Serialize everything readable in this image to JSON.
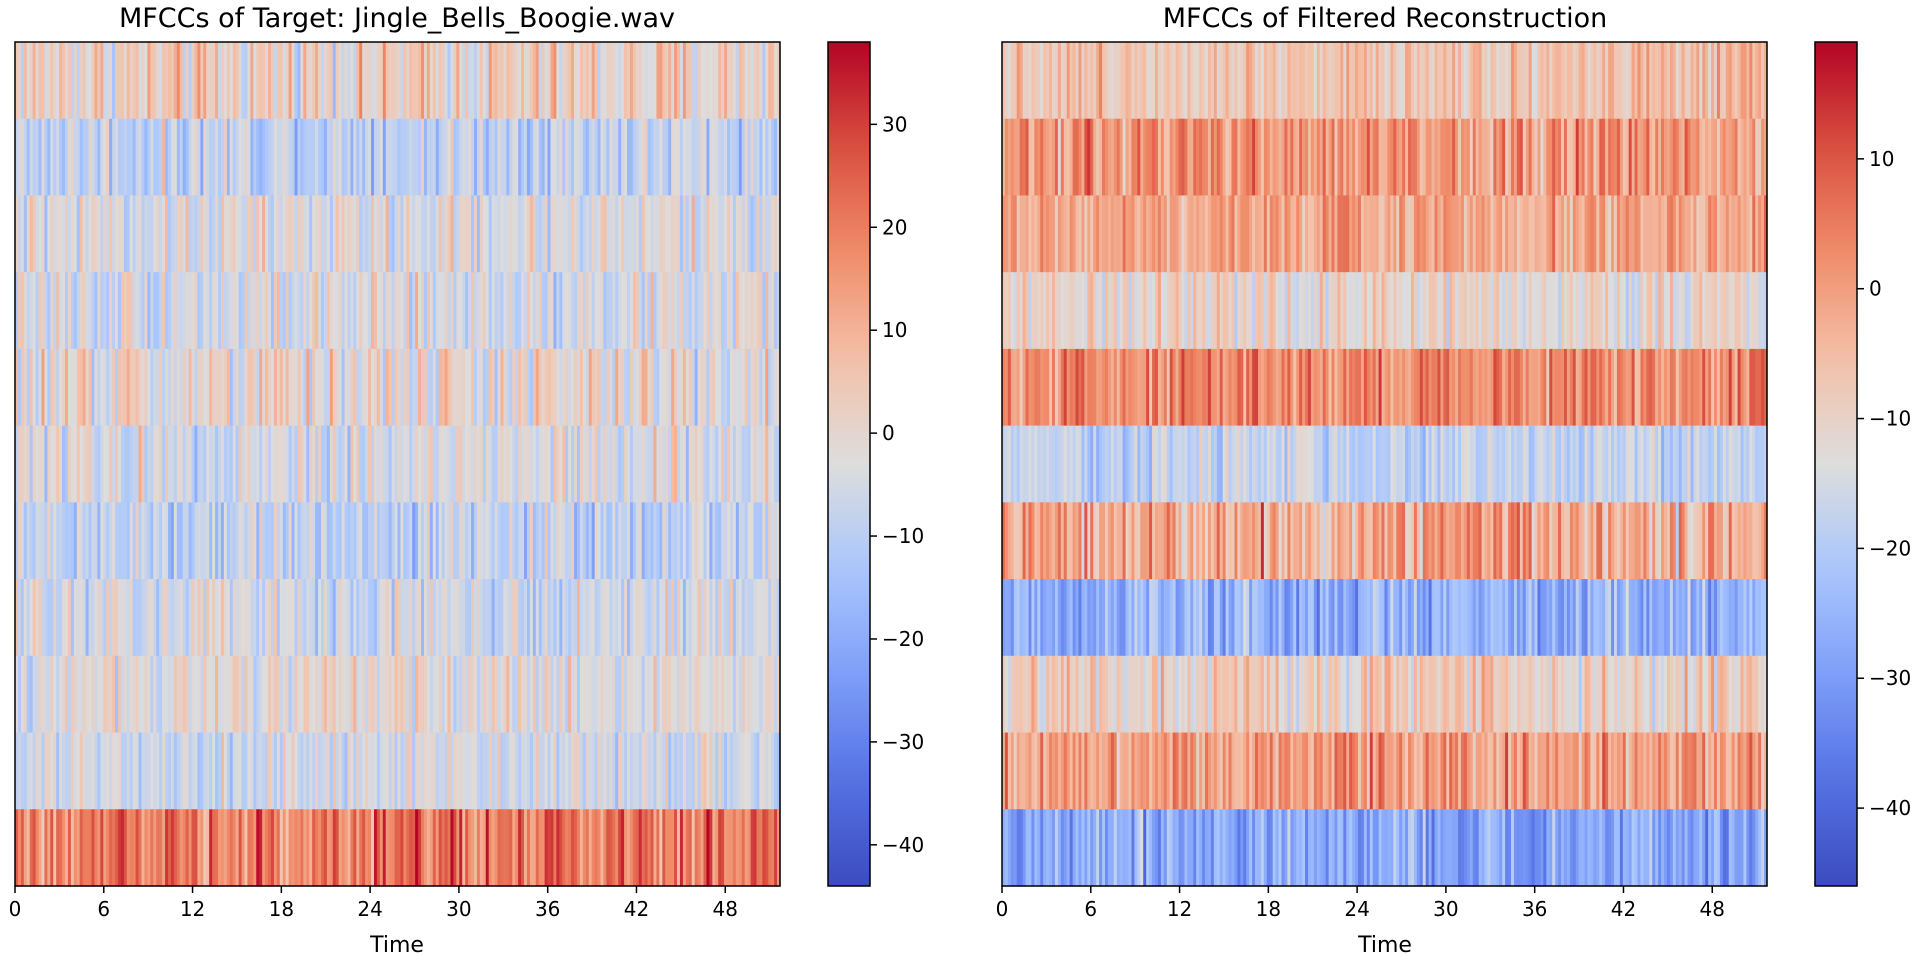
{
  "chart_data": [
    {
      "type": "heatmap",
      "title": "MFCCs of Target: Jingle_Bells_Boogie.wav",
      "xlabel": "Time",
      "ylabel": "",
      "xlim": [
        0,
        51.7
      ],
      "xticks": [
        "0",
        "6",
        "12",
        "18",
        "24",
        "30",
        "36",
        "42",
        "48"
      ],
      "xtick_values": [
        0,
        6,
        12,
        18,
        24,
        30,
        36,
        42,
        48
      ],
      "n_coefficients": 11,
      "n_frames": 260,
      "row_order": "top_to_bottom",
      "row_means": [
        2,
        -8,
        -3,
        -4,
        -1,
        -4,
        -8,
        -5,
        -2,
        -5,
        20
      ],
      "row_spread": [
        7,
        6,
        6,
        6,
        7,
        6,
        6,
        6,
        5,
        5,
        7
      ],
      "colormap": "coolwarm",
      "colorbar": {
        "vmin": -44,
        "vmax": 38,
        "ticks": [
          30,
          20,
          10,
          0,
          -10,
          -20,
          -30,
          -40
        ],
        "tick_labels": [
          "30",
          "20",
          "10",
          "0",
          "−10",
          "−20",
          "−30",
          "−40"
        ]
      }
    },
    {
      "type": "heatmap",
      "title": "MFCCs of Filtered Reconstruction",
      "xlabel": "Time",
      "ylabel": "",
      "xlim": [
        0,
        51.7
      ],
      "xticks": [
        "0",
        "6",
        "12",
        "18",
        "24",
        "30",
        "36",
        "42",
        "48"
      ],
      "xtick_values": [
        0,
        6,
        12,
        18,
        24,
        30,
        36,
        42,
        48
      ],
      "n_coefficients": 11,
      "n_frames": 260,
      "row_order": "top_to_bottom",
      "row_means": [
        -6,
        1,
        -1,
        -11,
        3,
        -18,
        -2,
        -26,
        -9,
        0,
        -28
      ],
      "row_spread": [
        4,
        5,
        4,
        4,
        5,
        4,
        6,
        5,
        5,
        5,
        5
      ],
      "colormap": "coolwarm",
      "colorbar": {
        "vmin": -46,
        "vmax": 19,
        "ticks": [
          10,
          0,
          -10,
          -20,
          -30,
          -40
        ],
        "tick_labels": [
          "10",
          "0",
          "−10",
          "−20",
          "−30",
          "−40"
        ]
      }
    }
  ],
  "colors": {
    "coolwarm_low": "#3b4cc0",
    "coolwarm_mid": "#dddddd",
    "coolwarm_high": "#b40426"
  }
}
